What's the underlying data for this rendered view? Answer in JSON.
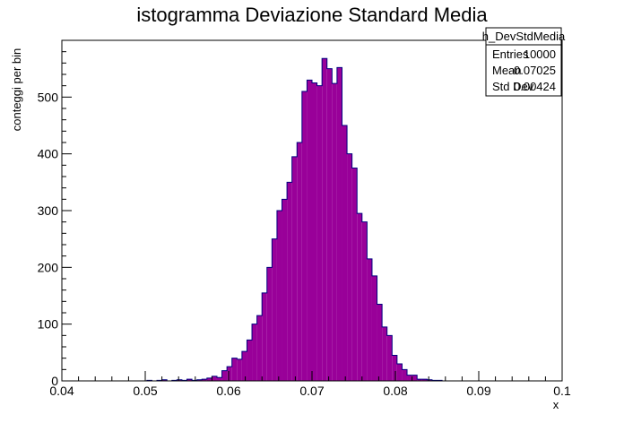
{
  "chart_data": {
    "type": "bar",
    "title": "istogramma Deviazione Standard Media",
    "xlabel": "x",
    "ylabel": "conteggi per bin",
    "xlim": [
      0.04,
      0.1
    ],
    "ylim": [
      0,
      600
    ],
    "x_ticks": [
      "0.04",
      "0.05",
      "0.06",
      "0.07",
      "0.08",
      "0.09",
      "0.1"
    ],
    "y_ticks": [
      "0",
      "100",
      "200",
      "300",
      "400",
      "500"
    ],
    "bin_width": 0.0006,
    "fill_color": "#990099",
    "line_color": "#000080",
    "series": [
      {
        "bin_low_edges": [
          0.0502,
          0.0508,
          0.0514,
          0.052,
          0.0526,
          0.0532,
          0.0538,
          0.0544,
          0.055,
          0.0556,
          0.0562,
          0.0568,
          0.0574,
          0.058,
          0.0586,
          0.0592,
          0.0598,
          0.0604,
          0.061,
          0.0616,
          0.0622,
          0.0628,
          0.0634,
          0.064,
          0.0646,
          0.0652,
          0.0658,
          0.0664,
          0.067,
          0.0676,
          0.0682,
          0.0688,
          0.0694,
          0.07,
          0.0706,
          0.0712,
          0.0718,
          0.0724,
          0.073,
          0.0736,
          0.0742,
          0.0748,
          0.0754,
          0.076,
          0.0766,
          0.0772,
          0.0778,
          0.0784,
          0.079,
          0.0796,
          0.0802,
          0.0808,
          0.0814,
          0.082,
          0.0826,
          0.0832,
          0.0838,
          0.0844,
          0.085
        ],
        "values": [
          1,
          0,
          1,
          2,
          0,
          1,
          2,
          1,
          3,
          1,
          2,
          3,
          5,
          8,
          6,
          18,
          25,
          40,
          38,
          52,
          72,
          100,
          115,
          155,
          200,
          250,
          300,
          320,
          350,
          395,
          420,
          510,
          530,
          525,
          520,
          568,
          550,
          524,
          552,
          450,
          400,
          375,
          295,
          280,
          215,
          185,
          135,
          95,
          80,
          45,
          30,
          20,
          10,
          10,
          3,
          3,
          2,
          1,
          1
        ]
      }
    ],
    "stats": {
      "name": "h_DevStdMedia",
      "rows": [
        {
          "label": "Entries",
          "value": "10000"
        },
        {
          "label": "Mean",
          "value": "0.07025"
        },
        {
          "label": "Std Dev",
          "value": "0.00424"
        }
      ]
    }
  }
}
